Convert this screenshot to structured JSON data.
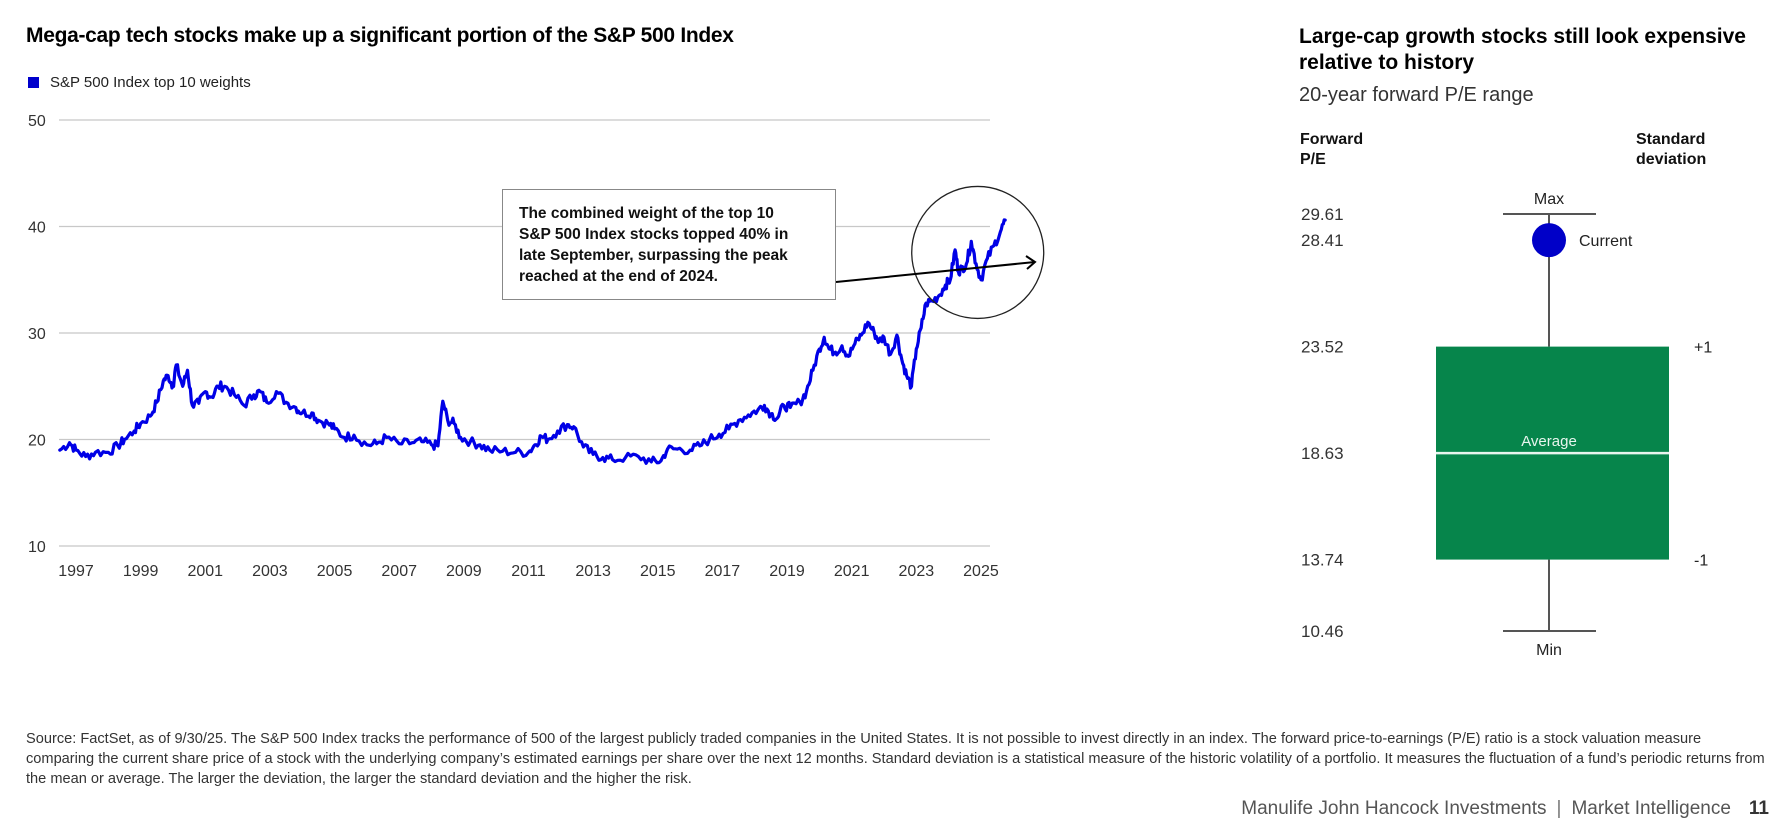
{
  "chart_data": [
    {
      "type": "line",
      "title": "Mega-cap tech stocks make up a significant portion of the S&P 500 Index",
      "legend": [
        "S&P 500 Index top 10 weights"
      ],
      "legend_placement": "top-left",
      "xlabel": "",
      "ylabel": "",
      "ylim": [
        10,
        50
      ],
      "xlim": [
        1996.5,
        2025.9
      ],
      "grid": true,
      "yticks": [
        10,
        20,
        30,
        40,
        50
      ],
      "xticks": [
        "1997",
        "1999",
        "2001",
        "2003",
        "2005",
        "2007",
        "2009",
        "2011",
        "2013",
        "2015",
        "2017",
        "2019",
        "2021",
        "2023",
        "2025"
      ],
      "series": [
        {
          "name": "S&P 500 Index top 10 weights",
          "color": "#0000e6",
          "x": [
            1996.5,
            1996.8,
            1997.0,
            1997.3,
            1997.6,
            1998.0,
            1998.3,
            1998.5,
            1998.8,
            1999.0,
            1999.3,
            1999.5,
            1999.7,
            1999.85,
            2000.0,
            2000.1,
            2000.3,
            2000.45,
            2000.6,
            2000.8,
            2001.0,
            2001.2,
            2001.4,
            2001.6,
            2001.9,
            2002.2,
            2002.5,
            2002.7,
            2002.9,
            2003.2,
            2003.5,
            2003.8,
            2004.0,
            2004.3,
            2004.5,
            2004.8,
            2005.0,
            2005.3,
            2005.6,
            2006.0,
            2006.3,
            2006.6,
            2007.0,
            2007.4,
            2007.7,
            2008.0,
            2008.2,
            2008.35,
            2008.5,
            2008.7,
            2008.9,
            2009.2,
            2009.5,
            2009.8,
            2010.2,
            2010.6,
            2011.0,
            2011.2,
            2011.4,
            2011.6,
            2011.9,
            2012.2,
            2012.4,
            2012.7,
            2013.0,
            2013.3,
            2013.6,
            2014.0,
            2014.4,
            2014.8,
            2015.1,
            2015.3,
            2015.6,
            2016.0,
            2016.3,
            2016.6,
            2016.9,
            2017.2,
            2017.5,
            2017.8,
            2018.1,
            2018.3,
            2018.5,
            2018.7,
            2018.9,
            2019.1,
            2019.4,
            2019.6,
            2019.8,
            2020.0,
            2020.15,
            2020.3,
            2020.5,
            2020.7,
            2020.9,
            2021.1,
            2021.3,
            2021.5,
            2021.7,
            2021.85,
            2022.0,
            2022.2,
            2022.4,
            2022.55,
            2022.7,
            2022.85,
            2023.0,
            2023.15,
            2023.3,
            2023.5,
            2023.7,
            2023.9,
            2024.05,
            2024.2,
            2024.3,
            2024.4,
            2024.55,
            2024.7,
            2024.85,
            2025.0,
            2025.2,
            2025.4,
            2025.6,
            2025.75
          ],
          "values": [
            19.0,
            19.7,
            19.0,
            18.4,
            18.8,
            18.8,
            19.4,
            20.0,
            20.8,
            21.5,
            22.2,
            23.5,
            25.5,
            26.0,
            25.0,
            27.0,
            25.0,
            26.5,
            23.2,
            23.4,
            24.5,
            24.0,
            25.0,
            25.0,
            24.2,
            23.2,
            24.2,
            24.5,
            23.5,
            24.5,
            23.5,
            23.0,
            22.5,
            22.5,
            21.8,
            21.5,
            21.0,
            20.2,
            20.4,
            19.5,
            19.6,
            20.2,
            19.6,
            19.7,
            19.8,
            19.5,
            19.4,
            23.6,
            21.8,
            21.5,
            20.2,
            19.8,
            19.5,
            19.0,
            18.9,
            18.8,
            18.8,
            19.5,
            20.3,
            20.0,
            20.8,
            21.4,
            21.2,
            19.3,
            18.6,
            18.3,
            18.1,
            18.3,
            18.4,
            17.9,
            18.0,
            19.1,
            19.1,
            19.0,
            19.4,
            20.0,
            20.5,
            21.0,
            21.8,
            22.3,
            22.8,
            23.2,
            22.4,
            22.0,
            23.2,
            23.0,
            23.5,
            24.5,
            26.5,
            28.5,
            29.6,
            28.5,
            28.2,
            28.8,
            27.8,
            29.0,
            29.8,
            31.0,
            30.0,
            29.2,
            29.6,
            28.0,
            29.8,
            27.5,
            26.0,
            25.0,
            28.5,
            30.5,
            32.8,
            33.0,
            33.5,
            34.5,
            35.0,
            37.8,
            35.8,
            36.0,
            36.5,
            38.6,
            36.5,
            35.0,
            37.0,
            38.2,
            39.5,
            40.6
          ],
          "annotation": {
            "text": "The combined weight of the top 10 S&P 500 Index stocks topped 40% in late September, surpassing the peak reached at the end of 2024.",
            "lines": [
              "The combined weight of the top 10",
              "S&P 500 Index stocks topped 40% in",
              "late September, surpassing the peak",
              "reached at the end of 2024."
            ],
            "highlight": {
              "x_center": 2024.9,
              "y_center": 37.0
            }
          }
        }
      ]
    },
    {
      "type": "box",
      "title": "Large-cap growth stocks still look expensive relative to history",
      "subtitle": "20-year forward P/E range",
      "left_axis_label": [
        "Forward",
        "P/E"
      ],
      "right_axis_label": [
        "Standard",
        "deviation"
      ],
      "ylim": [
        10.46,
        29.61
      ],
      "values": {
        "max": 29.61,
        "current": 28.41,
        "plus_one_sd": 23.52,
        "average": 18.63,
        "minus_one_sd": 13.74,
        "min": 10.46
      },
      "tick_labels": [
        "29.61",
        "28.41",
        "23.52",
        "18.63",
        "13.74",
        "10.46"
      ],
      "labels": {
        "max": "Max",
        "current": "Current",
        "average": "Average",
        "min": "Min",
        "plus": "+1",
        "minus": "-1"
      },
      "colors": {
        "box": "#06854b",
        "current": "#0000c8",
        "whisker": "#555555"
      }
    }
  ],
  "left_panel": {
    "title": "Mega-cap tech stocks make up a significant portion of the S&P 500 Index",
    "legend_label": "S&P 500 Index top 10 weights"
  },
  "right_panel": {
    "title": "Large-cap growth stocks still look expensive relative to history",
    "subtitle": "20-year forward P/E range",
    "left_head_1": "Forward",
    "left_head_2": "P/E",
    "right_head_1": "Standard",
    "right_head_2": "deviation"
  },
  "callout": {
    "line1": "The combined weight of the top 10",
    "line2": "S&P 500 Index stocks topped 40% in",
    "line3": "late September, surpassing the peak",
    "line4": "reached at the end of 2024."
  },
  "footnote": "Source: FactSet, as of 9/30/25. The S&P 500 Index tracks the performance of 500 of the largest publicly traded companies in the United States. It is not possible to invest directly in an index. The forward price-to-earnings (P/E) ratio is a stock valuation measure comparing the current share price of a stock with the underlying company’s estimated earnings per share over the next 12 months. Standard deviation is a statistical measure of the historic volatility of a portfolio. It measures the fluctuation of a fund’s periodic returns from the mean or average. The larger the deviation, the larger the standard deviation and the higher the risk.",
  "footer": {
    "brand": "Manulife John Hancock Investments",
    "separator": "|",
    "section": "Market Intelligence",
    "page_number": "11"
  }
}
